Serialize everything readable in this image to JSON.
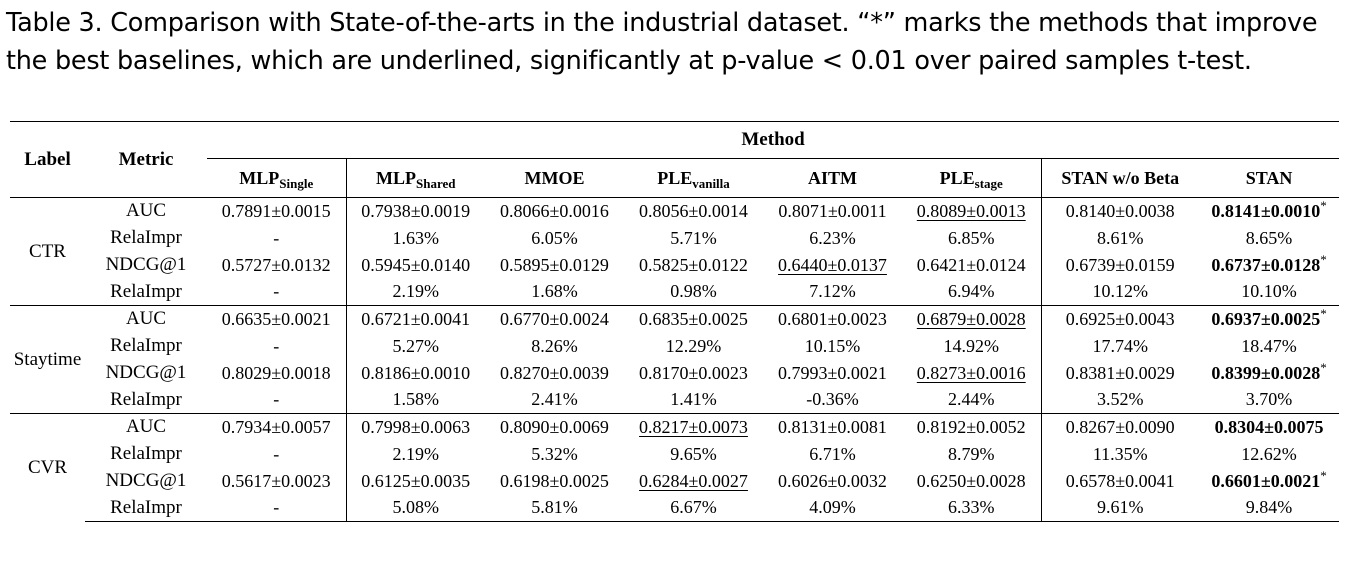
{
  "caption": "Table 3.  Comparison with State-of-the-arts in the industrial dataset. “*” marks the methods that improve the best baselines, which are underlined, significantly at p-value < 0.01 over paired samples t-test.",
  "table": {
    "header": {
      "label": "Label",
      "metric": "Metric",
      "method": "Method",
      "columns": [
        {
          "base": "MLP",
          "sub": "Single"
        },
        {
          "base": "MLP",
          "sub": "Shared"
        },
        {
          "base": "MMOE",
          "sub": ""
        },
        {
          "base": "PLE",
          "sub": "vanilla"
        },
        {
          "base": "AITM",
          "sub": ""
        },
        {
          "base": "PLE",
          "sub": "stage"
        },
        {
          "base": "STAN w/o Beta",
          "sub": ""
        },
        {
          "base": "STAN",
          "sub": ""
        }
      ]
    },
    "groups": [
      {
        "label": "CTR",
        "rows": [
          {
            "metric": "AUC",
            "cells": [
              {
                "v": "0.7891±0.0015"
              },
              {
                "v": "0.7938±0.0019"
              },
              {
                "v": "0.8066±0.0016"
              },
              {
                "v": "0.8056±0.0014"
              },
              {
                "v": "0.8071±0.0011"
              },
              {
                "v": "0.8089±0.0013",
                "u": true
              },
              {
                "v": "0.8140±0.0038"
              },
              {
                "v": "0.8141±0.0010",
                "b": true,
                "star": "*"
              }
            ]
          },
          {
            "metric": "RelaImpr",
            "cells": [
              {
                "v": "-"
              },
              {
                "v": "1.63%"
              },
              {
                "v": "6.05%"
              },
              {
                "v": "5.71%"
              },
              {
                "v": "6.23%"
              },
              {
                "v": "6.85%"
              },
              {
                "v": "8.61%"
              },
              {
                "v": "8.65%"
              }
            ]
          },
          {
            "metric": "NDCG@1",
            "cells": [
              {
                "v": "0.5727±0.0132"
              },
              {
                "v": "0.5945±0.0140"
              },
              {
                "v": "0.5895±0.0129"
              },
              {
                "v": "0.5825±0.0122"
              },
              {
                "v": "0.6440±0.0137",
                "u": true
              },
              {
                "v": "0.6421±0.0124"
              },
              {
                "v": "0.6739±0.0159"
              },
              {
                "v": "0.6737±0.0128",
                "b": true,
                "star": "*"
              }
            ]
          },
          {
            "metric": "RelaImpr",
            "cells": [
              {
                "v": "-"
              },
              {
                "v": "2.19%"
              },
              {
                "v": "1.68%"
              },
              {
                "v": "0.98%"
              },
              {
                "v": "7.12%"
              },
              {
                "v": "6.94%"
              },
              {
                "v": "10.12%"
              },
              {
                "v": "10.10%"
              }
            ]
          }
        ]
      },
      {
        "label": "Staytime",
        "rows": [
          {
            "metric": "AUC",
            "cells": [
              {
                "v": "0.6635±0.0021"
              },
              {
                "v": "0.6721±0.0041"
              },
              {
                "v": "0.6770±0.0024"
              },
              {
                "v": "0.6835±0.0025"
              },
              {
                "v": "0.6801±0.0023"
              },
              {
                "v": "0.6879±0.0028",
                "u": true
              },
              {
                "v": "0.6925±0.0043"
              },
              {
                "v": "0.6937±0.0025",
                "b": true,
                "star": "*"
              }
            ]
          },
          {
            "metric": "RelaImpr",
            "cells": [
              {
                "v": "-"
              },
              {
                "v": "5.27%"
              },
              {
                "v": "8.26%"
              },
              {
                "v": "12.29%"
              },
              {
                "v": "10.15%"
              },
              {
                "v": "14.92%"
              },
              {
                "v": "17.74%"
              },
              {
                "v": "18.47%"
              }
            ]
          },
          {
            "metric": "NDCG@1",
            "cells": [
              {
                "v": "0.8029±0.0018"
              },
              {
                "v": "0.8186±0.0010"
              },
              {
                "v": "0.8270±0.0039"
              },
              {
                "v": "0.8170±0.0023"
              },
              {
                "v": "0.7993±0.0021"
              },
              {
                "v": "0.8273±0.0016",
                "u": true
              },
              {
                "v": "0.8381±0.0029"
              },
              {
                "v": "0.8399±0.0028",
                "b": true,
                "star": "*"
              }
            ]
          },
          {
            "metric": "RelaImpr",
            "cells": [
              {
                "v": "-"
              },
              {
                "v": "1.58%"
              },
              {
                "v": "2.41%"
              },
              {
                "v": "1.41%"
              },
              {
                "v": "-0.36%"
              },
              {
                "v": "2.44%"
              },
              {
                "v": "3.52%"
              },
              {
                "v": "3.70%"
              }
            ]
          }
        ]
      },
      {
        "label": "CVR",
        "rows": [
          {
            "metric": "AUC",
            "cells": [
              {
                "v": "0.7934±0.0057"
              },
              {
                "v": "0.7998±0.0063"
              },
              {
                "v": "0.8090±0.0069"
              },
              {
                "v": "0.8217±0.0073",
                "u": true
              },
              {
                "v": "0.8131±0.0081"
              },
              {
                "v": "0.8192±0.0052"
              },
              {
                "v": "0.8267±0.0090"
              },
              {
                "v": "0.8304±0.0075",
                "b": true
              }
            ]
          },
          {
            "metric": "RelaImpr",
            "cells": [
              {
                "v": "-"
              },
              {
                "v": "2.19%"
              },
              {
                "v": "5.32%"
              },
              {
                "v": "9.65%"
              },
              {
                "v": "6.71%"
              },
              {
                "v": "8.79%"
              },
              {
                "v": "11.35%"
              },
              {
                "v": "12.62%"
              }
            ]
          },
          {
            "metric": "NDCG@1",
            "cells": [
              {
                "v": "0.5617±0.0023"
              },
              {
                "v": "0.6125±0.0035"
              },
              {
                "v": "0.6198±0.0025"
              },
              {
                "v": "0.6284±0.0027",
                "u": true
              },
              {
                "v": "0.6026±0.0032"
              },
              {
                "v": "0.6250±0.0028"
              },
              {
                "v": "0.6578±0.0041"
              },
              {
                "v": "0.6601±0.0021",
                "b": true,
                "star": "*"
              }
            ]
          },
          {
            "metric": "RelaImpr",
            "cells": [
              {
                "v": "-"
              },
              {
                "v": "5.08%"
              },
              {
                "v": "5.81%"
              },
              {
                "v": "6.67%"
              },
              {
                "v": "4.09%"
              },
              {
                "v": "6.33%"
              },
              {
                "v": "9.61%"
              },
              {
                "v": "9.84%"
              }
            ]
          }
        ]
      }
    ]
  }
}
